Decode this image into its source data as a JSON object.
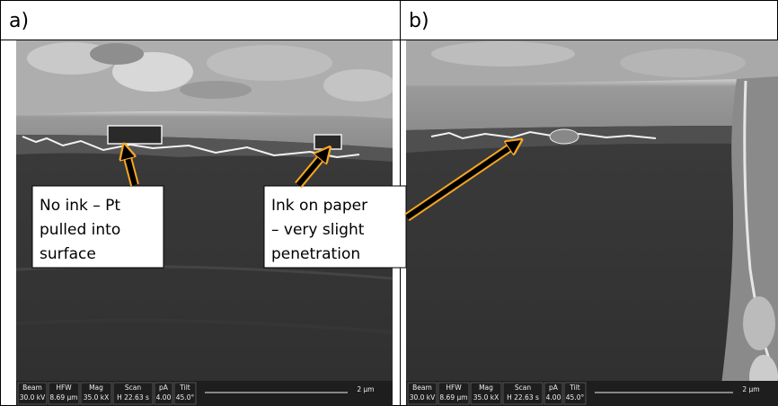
{
  "panels": [
    {
      "label": "a)",
      "annotations": [
        {
          "lines": [
            "No ink – Pt",
            "pulled into",
            "surface"
          ]
        },
        {
          "lines": [
            "Ink on paper",
            "– very slight",
            "penetration"
          ]
        }
      ],
      "databar": {
        "fields": [
          {
            "name": "Beam",
            "value": "30.0 kV"
          },
          {
            "name": "HFW",
            "value": "8.69 μm"
          },
          {
            "name": "Mag",
            "value": "35.0 kX"
          },
          {
            "name": "Scan",
            "value": "H 22.63 s"
          },
          {
            "name": "pA",
            "value": "4.00"
          },
          {
            "name": "Tilt",
            "value": "45.0°"
          }
        ],
        "scale": "2 μm"
      }
    },
    {
      "label": "b)",
      "databar": {
        "fields": [
          {
            "name": "Beam",
            "value": "30.0 kV"
          },
          {
            "name": "HFW",
            "value": "8.69 μm"
          },
          {
            "name": "Mag",
            "value": "35.0 kX"
          },
          {
            "name": "Scan",
            "value": "H 22.63 s"
          },
          {
            "name": "pA",
            "value": "4.00"
          },
          {
            "name": "Tilt",
            "value": "45.0°"
          }
        ],
        "scale": "2 μm"
      }
    }
  ]
}
